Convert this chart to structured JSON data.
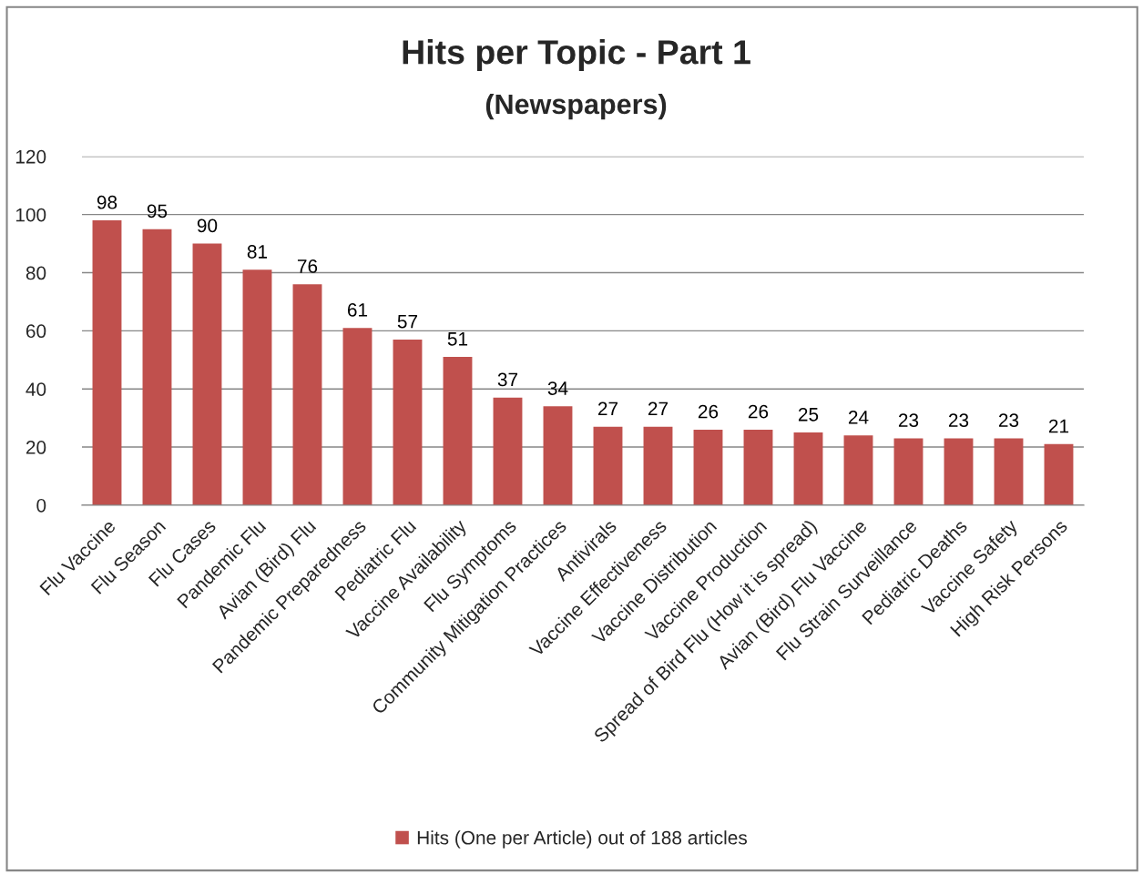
{
  "chart_data": {
    "type": "bar",
    "title": "Hits per Topic - Part 1",
    "subtitle": "(Newspapers)",
    "categories": [
      "Flu Vaccine",
      "Flu Season",
      "Flu Cases",
      "Pandemic Flu",
      "Avian (Bird) Flu",
      "Pandemic Preparedness",
      "Pediatric Flu",
      "Vaccine Availability",
      "Flu Symptoms",
      "Community Mitigation Practices",
      "Antivirals",
      "Vaccine Effectiveness",
      "Vaccine Distribution",
      "Vaccine Production",
      "Spread of Bird Flu (How it is spread)",
      "Avian (Bird) Flu Vaccine",
      "Flu Strain Surveillance",
      "Pediatric Deaths",
      "Vaccine Safety",
      "High Risk Persons"
    ],
    "series": [
      {
        "name": "Hits (One per Article) out of 188 articles",
        "color": "#c0504d",
        "values": [
          98,
          95,
          90,
          81,
          76,
          61,
          57,
          51,
          37,
          34,
          27,
          27,
          26,
          26,
          25,
          24,
          23,
          23,
          23,
          21
        ]
      }
    ],
    "ylim": [
      0,
      120
    ],
    "yticks": [
      0,
      20,
      40,
      60,
      80,
      100,
      120
    ],
    "grid": "y",
    "legend": "bottom",
    "data_labels": true
  }
}
